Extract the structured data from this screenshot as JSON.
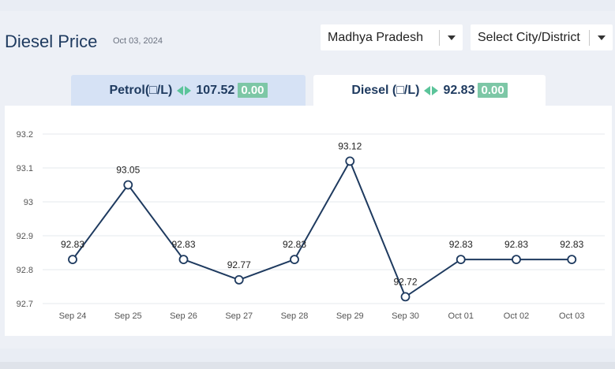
{
  "header": {
    "title": "Diesel Price",
    "date": "Oct 03, 2024"
  },
  "filters": {
    "state": "Madhya Pradesh",
    "city_placeholder": "Select City/District"
  },
  "tabs": [
    {
      "label": "Petrol(□/L)",
      "price": "107.52",
      "change": "0.00",
      "active": false
    },
    {
      "label": "Diesel (□/L)",
      "price": "92.83",
      "change": "0.00",
      "active": true
    }
  ],
  "colors": {
    "line": "#1e3a5f",
    "grid": "#e6e9ee",
    "badge": "#7dc7a6",
    "arrow": "#5bc49a"
  },
  "chart_data": {
    "type": "line",
    "categories": [
      "Sep 24",
      "Sep 25",
      "Sep 26",
      "Sep 27",
      "Sep 28",
      "Sep 29",
      "Sep 30",
      "Oct 01",
      "Oct 02",
      "Oct 03"
    ],
    "series": [
      {
        "values": [
          92.83,
          93.05,
          92.83,
          92.77,
          92.83,
          93.12,
          92.72,
          92.83,
          92.83,
          92.83
        ]
      }
    ],
    "y_ticks": [
      92.7,
      92.8,
      92.9,
      93,
      93.1,
      93.2
    ],
    "ylim": [
      92.7,
      93.2
    ],
    "grid": true,
    "data_labels": true
  }
}
